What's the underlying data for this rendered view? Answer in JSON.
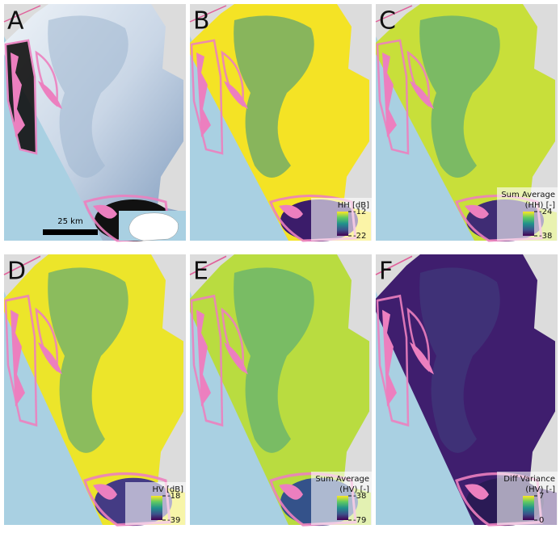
{
  "panels": [
    {
      "letter": "A",
      "scale_bar": "25 km"
    },
    {
      "letter": "B",
      "colorbar": {
        "label": [
          "HH [dB]"
        ],
        "ticks": [
          -12,
          -22
        ]
      }
    },
    {
      "letter": "C",
      "colorbar": {
        "label": [
          "Sum Average",
          "(HH) [-]"
        ],
        "ticks": [
          -24,
          -38
        ]
      }
    },
    {
      "letter": "D",
      "colorbar": {
        "label": [
          "HV [dB]"
        ],
        "ticks": [
          -18,
          -39
        ]
      }
    },
    {
      "letter": "E",
      "colorbar": {
        "label": [
          "Sum Average",
          "(HV) [-]"
        ],
        "ticks": [
          -38,
          -79
        ]
      }
    },
    {
      "letter": "F",
      "colorbar": {
        "label": [
          "Diff Variance",
          "(HV) [-]"
        ],
        "ticks": [
          7,
          0
        ]
      }
    }
  ]
}
